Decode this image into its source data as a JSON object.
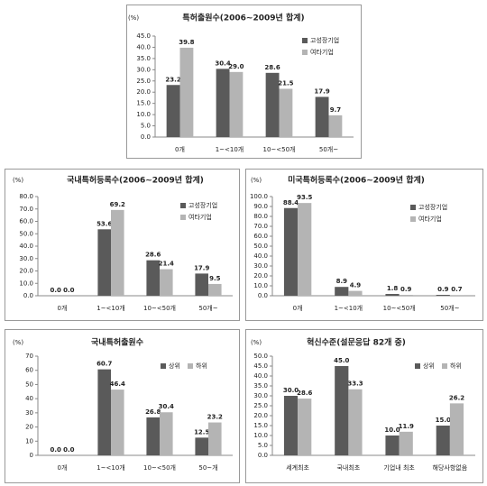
{
  "chart_data": [
    {
      "type": "bar",
      "title": "특허출원수(2006~2009년 합계)",
      "y_label": "(%)",
      "categories": [
        "0개",
        "1~<10개",
        "10~<50개",
        "50개~"
      ],
      "series": [
        {
          "name": "고성장기업",
          "color": "#5a5a5a",
          "values": [
            23.2,
            30.4,
            28.6,
            17.9
          ],
          "value_labels": [
            "23.2",
            "30.4",
            "28.6",
            "17.9"
          ]
        },
        {
          "name": "여타기업",
          "color": "#b4b4b4",
          "values": [
            39.8,
            29.0,
            21.5,
            9.7
          ],
          "value_labels": [
            "39.8",
            "29.0",
            "21.5",
            "9.7"
          ]
        }
      ],
      "ylim": [
        0,
        45
      ],
      "yticks": [
        {
          "value": 0,
          "label": "0.0"
        },
        {
          "value": 5,
          "label": "5.0"
        },
        {
          "value": 10,
          "label": "10.0"
        },
        {
          "value": 15,
          "label": "15.0"
        },
        {
          "value": 20,
          "label": "20.0"
        },
        {
          "value": 25,
          "label": "25.0"
        },
        {
          "value": 30,
          "label": "30.0"
        },
        {
          "value": 35,
          "label": "35.0"
        },
        {
          "value": 40,
          "label": "40.0"
        },
        {
          "value": 45,
          "label": "45.0"
        }
      ],
      "legend": "upper right"
    },
    {
      "type": "bar",
      "title": "국내특허등록수(2006~2009년 합계)",
      "y_label": "(%)",
      "categories": [
        "0개",
        "1~<10개",
        "10~<50개",
        "50개~"
      ],
      "series": [
        {
          "name": "고성장기업",
          "color": "#5a5a5a",
          "values": [
            0.0,
            53.6,
            28.6,
            17.9
          ],
          "value_labels": [
            "0.0",
            "53.6",
            "28.6",
            "17.9"
          ]
        },
        {
          "name": "여타기업",
          "color": "#b4b4b4",
          "values": [
            0.0,
            69.2,
            21.4,
            9.5
          ],
          "value_labels": [
            "0.0",
            "69.2",
            "21.4",
            "9.5"
          ]
        }
      ],
      "ylim": [
        0,
        80
      ],
      "yticks": [
        {
          "value": 0,
          "label": "0.0"
        },
        {
          "value": 10,
          "label": "10.0"
        },
        {
          "value": 20,
          "label": "20.0"
        },
        {
          "value": 30,
          "label": "30.0"
        },
        {
          "value": 40,
          "label": "40.0"
        },
        {
          "value": 50,
          "label": "50.0"
        },
        {
          "value": 60,
          "label": "60.0"
        },
        {
          "value": 70,
          "label": "70.0"
        },
        {
          "value": 80,
          "label": "80.0"
        }
      ],
      "legend": "upper right"
    },
    {
      "type": "bar",
      "title": "미국특허등록수(2006~2009년 합계)",
      "y_label": "(%)",
      "categories": [
        "0개",
        "1~<10개",
        "10~<50개",
        "50개~"
      ],
      "series": [
        {
          "name": "고성장기업",
          "color": "#5a5a5a",
          "values": [
            88.4,
            8.9,
            1.8,
            0.9
          ],
          "value_labels": [
            "88.4",
            "8.9",
            "1.8",
            "0.9"
          ]
        },
        {
          "name": "여타기업",
          "color": "#b4b4b4",
          "values": [
            93.5,
            4.9,
            0.9,
            0.7
          ],
          "value_labels": [
            "93.5",
            "4.9",
            "0.9",
            "0.7"
          ]
        }
      ],
      "ylim": [
        0,
        100
      ],
      "yticks": [
        {
          "value": 0,
          "label": "0.0"
        },
        {
          "value": 10,
          "label": "10.0"
        },
        {
          "value": 20,
          "label": "20.0"
        },
        {
          "value": 30,
          "label": "30.0"
        },
        {
          "value": 40,
          "label": "40.0"
        },
        {
          "value": 50,
          "label": "50.0"
        },
        {
          "value": 60,
          "label": "60.0"
        },
        {
          "value": 70,
          "label": "70.0"
        },
        {
          "value": 80,
          "label": "80.0"
        },
        {
          "value": 90,
          "label": "90.0"
        },
        {
          "value": 100,
          "label": "100.0"
        }
      ],
      "legend": "upper right"
    },
    {
      "type": "bar",
      "title": "국내특허출원수",
      "y_label": "(%)",
      "categories": [
        "0개",
        "1~<10개",
        "10~<50개",
        "50~개"
      ],
      "series": [
        {
          "name": "상위",
          "color": "#5a5a5a",
          "values": [
            0.0,
            60.7,
            26.8,
            12.5
          ],
          "value_labels": [
            "0.0",
            "60.7",
            "26.8",
            "12.5"
          ]
        },
        {
          "name": "하위",
          "color": "#b4b4b4",
          "values": [
            0.0,
            46.4,
            30.4,
            23.2
          ],
          "value_labels": [
            "0.0",
            "46.4",
            "30.4",
            "23.2"
          ]
        }
      ],
      "ylim": [
        0,
        70
      ],
      "yticks": [
        0,
        10,
        20,
        30,
        40,
        50,
        60,
        70
      ],
      "legend": "upper right"
    },
    {
      "type": "bar",
      "title": "혁신수준(설문응답 82개 중)",
      "y_label": "(%)",
      "categories": [
        "세계최초",
        "국내최초",
        "기업내 최초",
        "해당사항없음"
      ],
      "series": [
        {
          "name": "상위",
          "color": "#5a5a5a",
          "values": [
            30.0,
            45.0,
            10.0,
            15.0
          ],
          "value_labels": [
            "30.0",
            "45.0",
            "10.0",
            "15.0"
          ]
        },
        {
          "name": "하위",
          "color": "#b4b4b4",
          "values": [
            28.6,
            33.3,
            11.9,
            26.2
          ],
          "value_labels": [
            "28.6",
            "33.3",
            "11.9",
            "26.2"
          ]
        }
      ],
      "ylim": [
        0,
        50
      ],
      "yticks": [
        {
          "value": 0,
          "label": "0.0"
        },
        {
          "value": 5,
          "label": "5.0"
        },
        {
          "value": 10,
          "label": "10.0"
        },
        {
          "value": 15,
          "label": "15.0"
        },
        {
          "value": 20,
          "label": "20.0"
        },
        {
          "value": 25,
          "label": "25.0"
        },
        {
          "value": 30,
          "label": "30.0"
        },
        {
          "value": 35,
          "label": "35.0"
        },
        {
          "value": 40,
          "label": "40.0"
        },
        {
          "value": 45,
          "label": "45.0"
        },
        {
          "value": 50,
          "label": "50.0"
        }
      ],
      "legend": "upper right"
    }
  ]
}
